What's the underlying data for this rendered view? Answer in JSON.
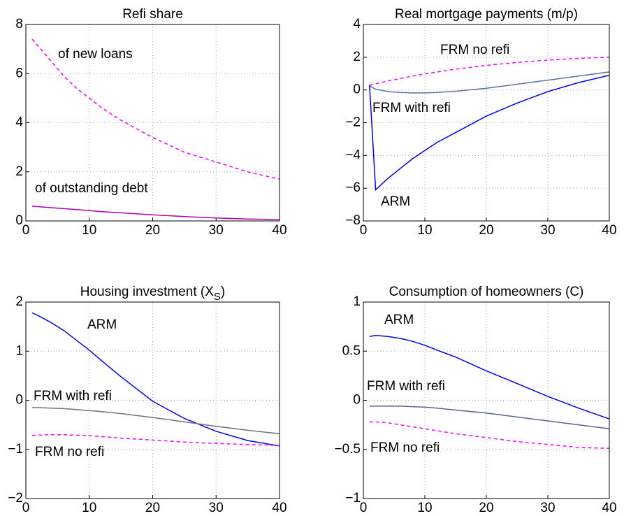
{
  "chart_data": [
    {
      "type": "line",
      "title": [
        "Refi share"
      ],
      "x": [
        1,
        2,
        4,
        6,
        8,
        10,
        12,
        15,
        20,
        25,
        30,
        35,
        40
      ],
      "xlim": [
        0,
        40
      ],
      "xticks": [
        0,
        10,
        20,
        30,
        40
      ],
      "ylim": [
        0,
        8
      ],
      "yticks": [
        0,
        2,
        4,
        6,
        8
      ],
      "grid": true,
      "series": [
        {
          "name": "of new loans",
          "color": "#ff00ff",
          "line_style": "dashed",
          "values": [
            7.4,
            7.1,
            6.5,
            5.9,
            5.4,
            5.0,
            4.6,
            4.1,
            3.4,
            2.8,
            2.4,
            2.0,
            1.7
          ]
        },
        {
          "name": "of outstanding debt",
          "color": "#b000b0",
          "line_style": "solid",
          "values": [
            0.6,
            0.58,
            0.54,
            0.5,
            0.46,
            0.42,
            0.38,
            0.33,
            0.25,
            0.18,
            0.12,
            0.08,
            0.05
          ]
        }
      ]
    },
    {
      "type": "line",
      "title": [
        "Real mortgage payments (m/p)"
      ],
      "x": [
        1,
        2,
        4,
        6,
        8,
        10,
        12,
        15,
        20,
        25,
        30,
        35,
        40
      ],
      "xlim": [
        0,
        40
      ],
      "xticks": [
        0,
        10,
        20,
        30,
        40
      ],
      "ylim": [
        -8,
        4
      ],
      "yticks": [
        {
          "value": -8,
          "label": "−8"
        },
        {
          "value": -6,
          "label": "−6"
        },
        {
          "value": -4,
          "label": "−4"
        },
        {
          "value": -2,
          "label": "−2"
        },
        0,
        2,
        4
      ],
      "grid": true,
      "series": [
        {
          "name": "FRM no refi",
          "color": "#ff00ff",
          "line_style": "dashed",
          "values": [
            0.3,
            0.38,
            0.55,
            0.7,
            0.85,
            0.98,
            1.1,
            1.27,
            1.5,
            1.68,
            1.82,
            1.93,
            2.0
          ]
        },
        {
          "name": "FRM with refi",
          "color": "#5f6f9f",
          "line_style": "solid",
          "values": [
            0.25,
            0.05,
            -0.1,
            -0.15,
            -0.18,
            -0.18,
            -0.15,
            -0.08,
            0.1,
            0.35,
            0.6,
            0.85,
            1.1
          ]
        },
        {
          "name": "ARM",
          "color": "#0000ee",
          "line_style": "solid",
          "values": [
            0.3,
            -6.1,
            -5.4,
            -4.8,
            -4.2,
            -3.7,
            -3.2,
            -2.6,
            -1.6,
            -0.8,
            -0.1,
            0.45,
            0.9
          ]
        }
      ]
    },
    {
      "type": "line",
      "title": [
        "Housing investment (X",
        "S",
        ")"
      ],
      "x": [
        1,
        2,
        4,
        6,
        8,
        10,
        12,
        15,
        20,
        25,
        30,
        35,
        40
      ],
      "xlim": [
        0,
        40
      ],
      "xticks": [
        0,
        10,
        20,
        30,
        40
      ],
      "ylim": [
        -2,
        2
      ],
      "yticks": [
        {
          "value": -2,
          "label": "−2"
        },
        {
          "value": -1,
          "label": "−1"
        },
        0,
        1,
        2
      ],
      "grid": true,
      "series": [
        {
          "name": "ARM",
          "color": "#0000ee",
          "line_style": "solid",
          "values": [
            1.78,
            1.72,
            1.58,
            1.42,
            1.22,
            1.02,
            0.8,
            0.48,
            -0.02,
            -0.37,
            -0.63,
            -0.82,
            -0.93
          ]
        },
        {
          "name": "FRM with refi",
          "color": "#707080",
          "line_style": "solid",
          "values": [
            -0.15,
            -0.15,
            -0.16,
            -0.17,
            -0.19,
            -0.21,
            -0.23,
            -0.27,
            -0.35,
            -0.44,
            -0.53,
            -0.61,
            -0.68
          ]
        },
        {
          "name": "FRM no refi",
          "color": "#ff00ff",
          "line_style": "dashed",
          "values": [
            -0.72,
            -0.71,
            -0.7,
            -0.7,
            -0.71,
            -0.72,
            -0.74,
            -0.77,
            -0.81,
            -0.85,
            -0.88,
            -0.9,
            -0.92
          ]
        }
      ]
    },
    {
      "type": "line",
      "title": [
        "Consumption of homeowners (C)"
      ],
      "x": [
        1,
        2,
        4,
        6,
        8,
        10,
        12,
        15,
        20,
        25,
        30,
        35,
        40
      ],
      "xlim": [
        0,
        40
      ],
      "xticks": [
        0,
        10,
        20,
        30,
        40
      ],
      "ylim": [
        -1,
        1
      ],
      "yticks": [
        {
          "value": -1,
          "label": "−1"
        },
        {
          "value": -0.5,
          "label": "−0.5"
        },
        0,
        0.5,
        1
      ],
      "grid": true,
      "series": [
        {
          "name": "ARM",
          "color": "#0000ee",
          "line_style": "solid",
          "values": [
            0.65,
            0.66,
            0.65,
            0.63,
            0.6,
            0.56,
            0.51,
            0.44,
            0.3,
            0.17,
            0.04,
            -0.08,
            -0.19
          ]
        },
        {
          "name": "FRM with refi",
          "color": "#556688",
          "line_style": "solid",
          "values": [
            -0.06,
            -0.06,
            -0.06,
            -0.06,
            -0.065,
            -0.07,
            -0.08,
            -0.1,
            -0.13,
            -0.17,
            -0.21,
            -0.25,
            -0.29
          ]
        },
        {
          "name": "FRM no refi",
          "color": "#ff00ff",
          "line_style": "dashed",
          "values": [
            -0.22,
            -0.22,
            -0.23,
            -0.25,
            -0.27,
            -0.29,
            -0.31,
            -0.34,
            -0.38,
            -0.42,
            -0.45,
            -0.48,
            -0.49
          ]
        }
      ]
    }
  ]
}
